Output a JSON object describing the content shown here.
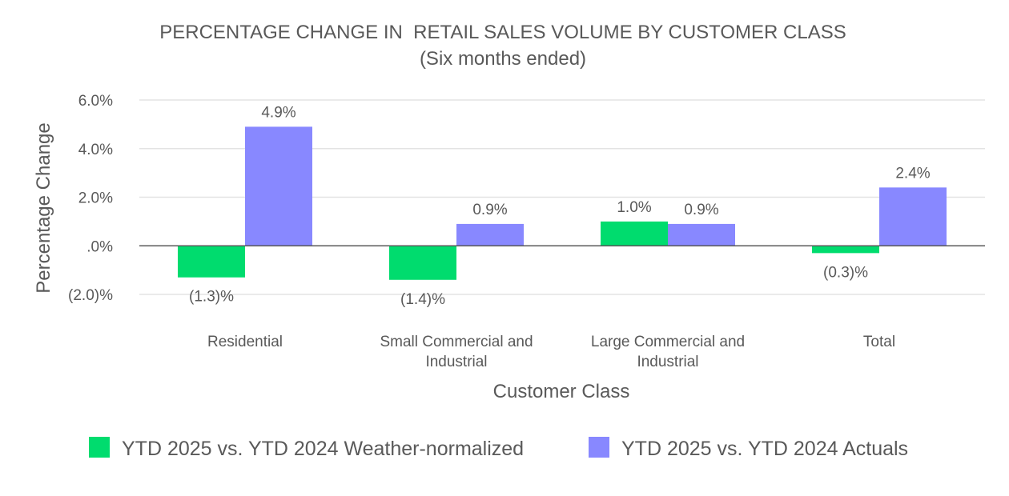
{
  "chart_data": {
    "type": "bar",
    "title": "PERCENTAGE CHANGE IN  RETAIL SALES VOLUME BY CUSTOMER CLASS",
    "subtitle": "(Six months ended)",
    "xlabel": "Customer Class",
    "ylabel": "Percentage Change",
    "ylim": [
      -2.0,
      6.0
    ],
    "yticks": [
      {
        "value": 6.0,
        "label": "6.0%"
      },
      {
        "value": 4.0,
        "label": "4.0%"
      },
      {
        "value": 2.0,
        "label": "2.0%"
      },
      {
        "value": 0.0,
        "label": ".0%"
      },
      {
        "value": -2.0,
        "label": "(2.0)%"
      }
    ],
    "categories": [
      [
        "Residential"
      ],
      [
        "Small Commercial and",
        "Industrial"
      ],
      [
        "Large Commercial and",
        "Industrial"
      ],
      [
        "Total"
      ]
    ],
    "series": [
      {
        "name": "YTD 2025 vs. YTD 2024 Weather-normalized",
        "color": "#00DC6E",
        "values": [
          -1.3,
          -1.4,
          1.0,
          -0.3
        ],
        "labels": [
          "(1.3)%",
          "(1.4)%",
          "1.0%",
          "(0.3)%"
        ]
      },
      {
        "name": "YTD 2025 vs. YTD 2024 Actuals",
        "color": "#8888FF",
        "values": [
          4.9,
          0.9,
          0.9,
          2.4
        ],
        "labels": [
          "4.9%",
          "0.9%",
          "0.9%",
          "2.4%"
        ]
      }
    ],
    "grid": true,
    "legend_position": "bottom"
  }
}
